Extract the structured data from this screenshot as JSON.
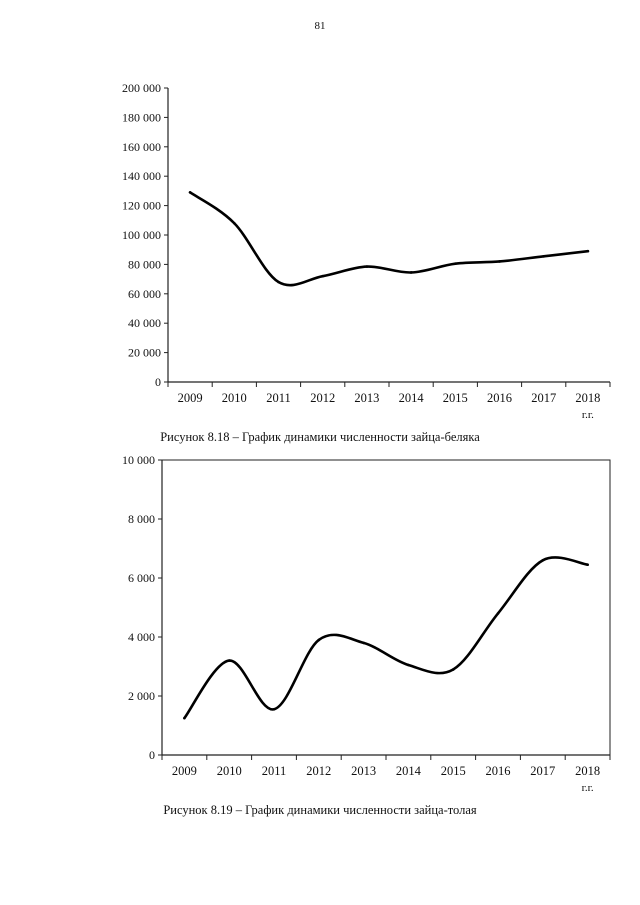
{
  "page": {
    "number": "81"
  },
  "chart_data": [
    {
      "type": "line",
      "caption": "Рисунок 8.18 – График динамики численности зайца-беляка",
      "categories": [
        "2009",
        "2010",
        "2011",
        "2012",
        "2013",
        "2014",
        "2015",
        "2016",
        "2017",
        "2018"
      ],
      "x_unit": "г.г.",
      "series": [
        {
          "values": [
            129000,
            108000,
            68000,
            72000,
            78500,
            74500,
            80500,
            82000,
            85500,
            89000
          ]
        }
      ],
      "ylim": [
        0,
        200000
      ],
      "y_ticks": [
        {
          "value": 0,
          "label": "0"
        },
        {
          "value": 20000,
          "label": "20 000"
        },
        {
          "value": 40000,
          "label": "40 000"
        },
        {
          "value": 60000,
          "label": "60 000"
        },
        {
          "value": 80000,
          "label": "80 000"
        },
        {
          "value": 100000,
          "label": "100 000"
        },
        {
          "value": 120000,
          "label": "120 000"
        },
        {
          "value": 140000,
          "label": "140 000"
        },
        {
          "value": 160000,
          "label": "160 000"
        },
        {
          "value": 180000,
          "label": "180 000"
        },
        {
          "value": 200000,
          "label": "200 000"
        }
      ],
      "grid": false,
      "line_color": "#000000"
    },
    {
      "type": "line",
      "caption": "Рисунок 8.19 – График динамики численности зайца-толая",
      "categories": [
        "2009",
        "2010",
        "2011",
        "2012",
        "2013",
        "2014",
        "2015",
        "2016",
        "2017",
        "2018"
      ],
      "x_unit": "г.г.",
      "series": [
        {
          "values": [
            1250,
            3200,
            1550,
            3900,
            3800,
            3050,
            2900,
            4800,
            6600,
            6450
          ]
        }
      ],
      "ylim": [
        0,
        10000
      ],
      "y_ticks": [
        {
          "value": 0,
          "label": "0"
        },
        {
          "value": 2000,
          "label": "2 000"
        },
        {
          "value": 4000,
          "label": "4 000"
        },
        {
          "value": 6000,
          "label": "6 000"
        },
        {
          "value": 8000,
          "label": "8 000"
        },
        {
          "value": 10000,
          "label": "10 000"
        }
      ],
      "grid": false,
      "line_color": "#000000"
    }
  ]
}
